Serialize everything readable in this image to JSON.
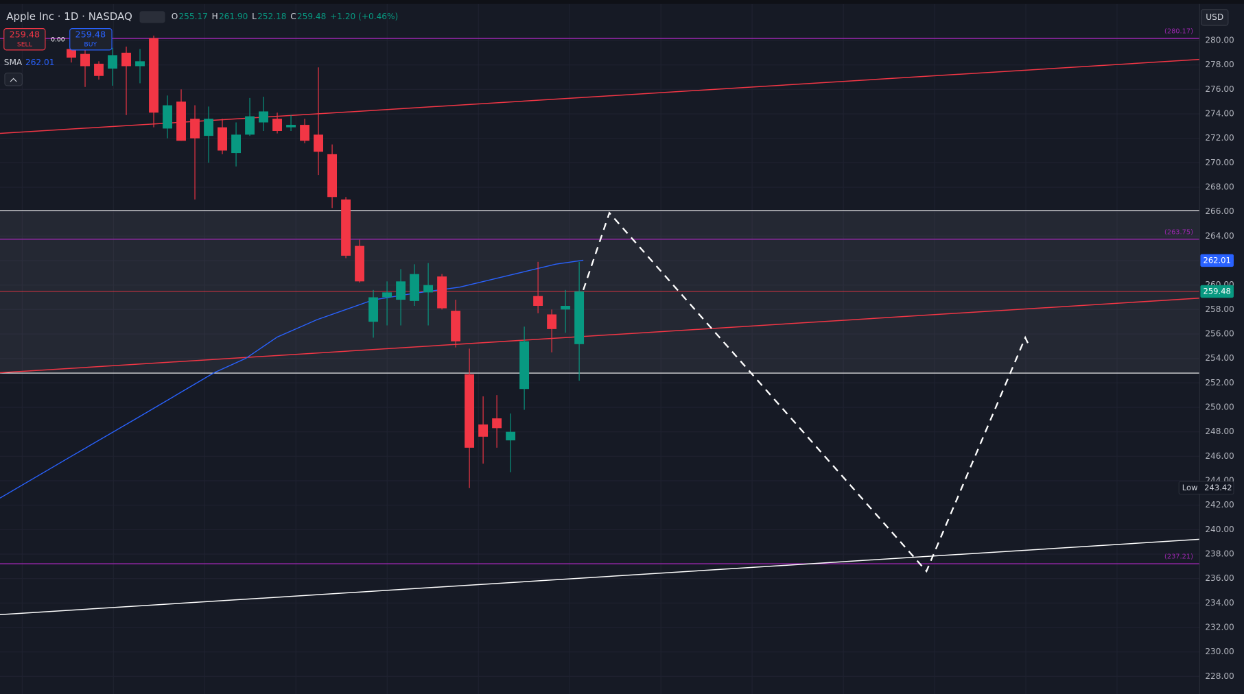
{
  "header": {
    "symbol": "Apple Inc · 1D · NASDAQ",
    "ohlc": [
      {
        "key": "O",
        "value": "255.17"
      },
      {
        "key": "H",
        "value": "261.90"
      },
      {
        "key": "L",
        "value": "252.18"
      },
      {
        "key": "C",
        "value": "259.48"
      }
    ],
    "change": "+1.20 (+0.46%)"
  },
  "trade": {
    "sell_price": "259.48",
    "sell_label": "SELL",
    "spread": "0.00",
    "buy_price": "259.48",
    "buy_label": "BUY"
  },
  "currency": "USD",
  "chart_data": {
    "type": "candlestick",
    "x": [
      0,
      1,
      2,
      3,
      4,
      5,
      6,
      7,
      8,
      9,
      10,
      11,
      12,
      13,
      14,
      15,
      16,
      17,
      18,
      19,
      20,
      21,
      22,
      23,
      24,
      25,
      26,
      27,
      28,
      29,
      30,
      31,
      32,
      33,
      34,
      35,
      36,
      37
    ],
    "open": [
      279.3,
      278.9,
      278.1,
      277.7,
      279.0,
      277.9,
      280.2,
      272.8,
      275.0,
      273.6,
      272.2,
      272.9,
      270.8,
      272.3,
      273.3,
      273.6,
      272.9,
      273.1,
      272.3,
      270.7,
      267.0,
      263.2,
      257.0,
      259.0,
      258.8,
      258.7,
      259.4,
      260.7,
      257.9,
      252.7,
      248.6,
      249.1,
      247.3,
      251.5,
      259.1,
      257.6,
      258.0,
      255.17
    ],
    "high": [
      280.0,
      279.4,
      278.3,
      279.4,
      279.5,
      279.3,
      280.4,
      275.5,
      276.0,
      274.7,
      274.6,
      273.6,
      273.3,
      275.3,
      275.4,
      274.1,
      273.9,
      273.6,
      277.8,
      271.5,
      267.2,
      263.7,
      259.6,
      260.3,
      261.3,
      261.7,
      261.8,
      260.9,
      258.8,
      254.8,
      250.9,
      251.0,
      249.5,
      256.6,
      261.9,
      258.0,
      259.6,
      261.9
    ],
    "low": [
      278.2,
      276.2,
      276.8,
      276.3,
      273.9,
      276.5,
      272.9,
      272.0,
      271.8,
      267.0,
      270.0,
      270.7,
      269.7,
      272.2,
      272.6,
      272.4,
      272.6,
      271.6,
      269.0,
      266.3,
      262.2,
      260.2,
      255.7,
      256.7,
      256.7,
      258.3,
      256.7,
      258.0,
      254.9,
      243.4,
      245.4,
      246.7,
      244.7,
      249.8,
      257.7,
      254.5,
      256.1,
      252.18
    ],
    "close": [
      278.6,
      277.9,
      277.1,
      278.8,
      277.9,
      278.3,
      274.1,
      274.7,
      271.8,
      272.0,
      273.6,
      271.0,
      272.3,
      273.8,
      274.2,
      272.6,
      273.1,
      271.8,
      270.9,
      267.2,
      262.4,
      260.3,
      259.0,
      259.4,
      260.3,
      260.9,
      260.0,
      258.1,
      255.4,
      246.7,
      247.6,
      248.3,
      248.0,
      255.4,
      258.3,
      256.4,
      258.3,
      259.48
    ],
    "up_color": "#089981",
    "down_color": "#f23645",
    "xlim": [
      -5.2,
      82.2
    ],
    "ylim": [
      226.56,
      283.31
    ],
    "yticks": [
      {
        "value": 228,
        "label": "228.00"
      },
      {
        "value": 230,
        "label": "230.00"
      },
      {
        "value": 232,
        "label": "232.00"
      },
      {
        "value": 234,
        "label": "234.00"
      },
      {
        "value": 236,
        "label": "236.00"
      },
      {
        "value": 238,
        "label": "238.00"
      },
      {
        "value": 240,
        "label": "240.00"
      },
      {
        "value": 242,
        "label": "242.00"
      },
      {
        "value": 244,
        "label": "244.00"
      },
      {
        "value": 246,
        "label": "246.00"
      },
      {
        "value": 248,
        "label": "248.00"
      },
      {
        "value": 250,
        "label": "250.00"
      },
      {
        "value": 252,
        "label": "252.00"
      },
      {
        "value": 254,
        "label": "254.00"
      },
      {
        "value": 256,
        "label": "256.00"
      },
      {
        "value": 258,
        "label": "258.00"
      },
      {
        "value": 260,
        "label": "260.00"
      },
      {
        "value": 262,
        "label": "262.00"
      },
      {
        "value": 264,
        "label": "264.00"
      },
      {
        "value": 266,
        "label": "266.00"
      },
      {
        "value": 268,
        "label": "268.00"
      },
      {
        "value": 270,
        "label": "270.00"
      },
      {
        "value": 272,
        "label": "272.00"
      },
      {
        "value": 274,
        "label": "274.00"
      },
      {
        "value": 276,
        "label": "276.00"
      },
      {
        "value": 278,
        "label": "278.00"
      },
      {
        "value": 280,
        "label": "280.00"
      }
    ],
    "grid": true,
    "sma": {
      "name": "SMA",
      "value_label": "262.01",
      "color": "#2962ff",
      "x": [
        -5.2,
        0,
        4.8,
        10.4,
        12.7,
        15.0,
        17.9,
        22.0,
        24.9,
        28.3,
        32.4,
        35.3,
        37.3
      ],
      "values": [
        242.58,
        246.0,
        249.13,
        252.83,
        254.0,
        255.75,
        257.17,
        258.79,
        259.31,
        259.83,
        260.93,
        261.71,
        262.03
      ]
    },
    "zone": [
      252.8,
      266.1
    ],
    "hlines": [
      {
        "value": 280.17,
        "label": "(280.17)",
        "color": "#9c27b0"
      },
      {
        "value": 263.75,
        "label": "(263.75)",
        "color": "#9c27b0"
      },
      {
        "value": 237.21,
        "label": "(237.21)",
        "color": "#9c27b0"
      }
    ],
    "red_level": 259.48,
    "trendlines": [
      {
        "x": [
          -5.2,
          82.2
        ],
        "values": [
          272.4,
          278.45
        ],
        "color": "#f23645"
      },
      {
        "x": [
          -5.2,
          82.2
        ],
        "values": [
          252.83,
          258.93
        ],
        "color": "#f23645"
      },
      {
        "x": [
          -5.2,
          82.2
        ],
        "values": [
          233.05,
          239.21
        ],
        "color": "#ffffff"
      }
    ],
    "path": {
      "x": [
        37.3,
        39.2,
        62.3,
        69.5,
        69.8
      ],
      "values": [
        259.6,
        265.9,
        236.6,
        255.7,
        255.0
      ]
    },
    "price_tags": [
      {
        "value": 262.01,
        "color": "#2962ff"
      },
      {
        "value": 259.48,
        "color": "#089981"
      }
    ],
    "low_tag": {
      "name": "Low",
      "value": 243.42
    }
  }
}
